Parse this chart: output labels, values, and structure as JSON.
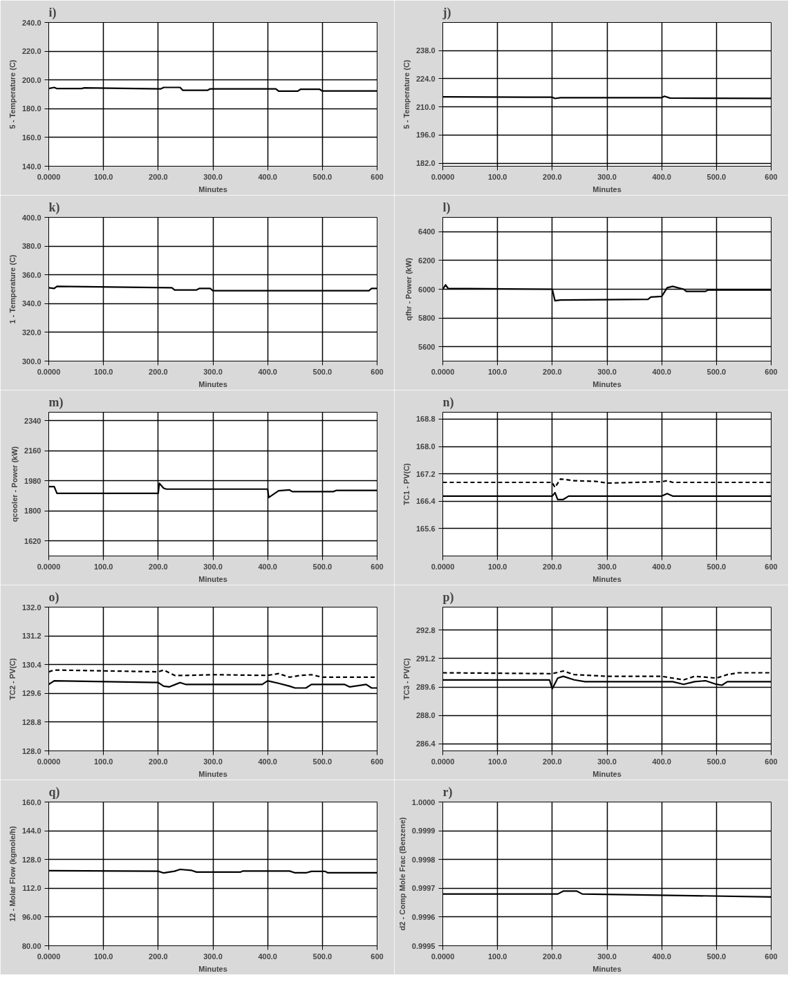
{
  "chart_data": [
    {
      "type": "line",
      "title": "i)",
      "xlabel": "Minutes",
      "ylabel": "5 - Temperature (C)",
      "xlim": [
        0,
        600
      ],
      "ylim": [
        140,
        240
      ],
      "xticks": [
        {
          "value": 0,
          "label": "0.0000"
        },
        {
          "value": 100,
          "label": "100.0"
        },
        {
          "value": 200,
          "label": "200.0"
        },
        {
          "value": 300,
          "label": "300.0"
        },
        {
          "value": 400,
          "label": "400.0"
        },
        {
          "value": 500,
          "label": "500.0"
        },
        {
          "value": 600,
          "label": "600"
        }
      ],
      "yticks": [
        {
          "value": 140,
          "label": "140.0"
        },
        {
          "value": 160,
          "label": "160.0"
        },
        {
          "value": 180,
          "label": "180.0"
        },
        {
          "value": 200,
          "label": "200.0"
        },
        {
          "value": 220,
          "label": "220.0"
        },
        {
          "value": 240,
          "label": "240.0"
        }
      ],
      "grid": true,
      "series": [
        {
          "color": "#000000",
          "line_style": "solid",
          "x": [
            0,
            10,
            15,
            60,
            65,
            205,
            210,
            240,
            245,
            290,
            295,
            415,
            420,
            455,
            460,
            495,
            500,
            600
          ],
          "values": [
            194,
            194.8,
            194,
            194,
            194.5,
            193.8,
            194.8,
            194.8,
            192.8,
            192.8,
            193.8,
            193.8,
            192.2,
            192.2,
            193.5,
            193.5,
            192.3,
            192.3
          ]
        }
      ]
    },
    {
      "type": "line",
      "title": "j)",
      "xlabel": "Minutes",
      "ylabel": "5 - Temperature (C)",
      "xlim": [
        0,
        600
      ],
      "ylim": [
        180.5,
        252
      ],
      "xticks": [
        {
          "value": 0,
          "label": "0.0000"
        },
        {
          "value": 100,
          "label": "100.0"
        },
        {
          "value": 200,
          "label": "200.0"
        },
        {
          "value": 300,
          "label": "300.0"
        },
        {
          "value": 400,
          "label": "400.0"
        },
        {
          "value": 500,
          "label": "500.0"
        },
        {
          "value": 600,
          "label": "600"
        }
      ],
      "yticks": [
        {
          "value": 182,
          "label": "182.0"
        },
        {
          "value": 196,
          "label": "196.0"
        },
        {
          "value": 210,
          "label": "210.0"
        },
        {
          "value": 224,
          "label": "224.0"
        },
        {
          "value": 238,
          "label": "238.0"
        }
      ],
      "grid": true,
      "series": [
        {
          "color": "#000000",
          "line_style": "solid",
          "x": [
            0,
            200,
            205,
            215,
            400,
            405,
            415,
            600
          ],
          "values": [
            215,
            214.8,
            214.2,
            214.6,
            214.6,
            215.3,
            214.4,
            214.2
          ]
        }
      ]
    },
    {
      "type": "line",
      "title": "k)",
      "xlabel": "Minutes",
      "ylabel": "1 - Temperature (C)",
      "xlim": [
        0,
        600
      ],
      "ylim": [
        300,
        400
      ],
      "xticks": [
        {
          "value": 0,
          "label": "0.0000"
        },
        {
          "value": 100,
          "label": "100.0"
        },
        {
          "value": 200,
          "label": "200.0"
        },
        {
          "value": 300,
          "label": "300.0"
        },
        {
          "value": 400,
          "label": "400.0"
        },
        {
          "value": 500,
          "label": "500.0"
        },
        {
          "value": 600,
          "label": "600"
        }
      ],
      "yticks": [
        {
          "value": 300,
          "label": "300.0"
        },
        {
          "value": 320,
          "label": "320.0"
        },
        {
          "value": 340,
          "label": "340.0"
        },
        {
          "value": 360,
          "label": "360.0"
        },
        {
          "value": 380,
          "label": "380.0"
        },
        {
          "value": 400,
          "label": "400.0"
        }
      ],
      "grid": true,
      "series": [
        {
          "color": "#000000",
          "line_style": "solid",
          "x": [
            0,
            10,
            15,
            225,
            230,
            270,
            275,
            295,
            300,
            585,
            590,
            600
          ],
          "values": [
            351,
            350.5,
            352,
            351,
            349.5,
            349.5,
            350.5,
            350.5,
            349,
            349,
            350.5,
            350.5
          ]
        }
      ]
    },
    {
      "type": "line",
      "title": "l)",
      "xlabel": "Minutes",
      "ylabel": "qfhr - Power (kW)",
      "xlim": [
        0,
        600
      ],
      "ylim": [
        5500,
        6500
      ],
      "xticks": [
        {
          "value": 0,
          "label": "0.0000"
        },
        {
          "value": 100,
          "label": "100.0"
        },
        {
          "value": 200,
          "label": "200.0"
        },
        {
          "value": 300,
          "label": "300.0"
        },
        {
          "value": 400,
          "label": "400.0"
        },
        {
          "value": 500,
          "label": "500.0"
        },
        {
          "value": 600,
          "label": "600"
        }
      ],
      "yticks": [
        5600,
        5800,
        6000,
        6200,
        6400
      ],
      "grid": true,
      "series": [
        {
          "color": "#000000",
          "line_style": "solid",
          "x": [
            0,
            5,
            10,
            200,
            205,
            215,
            375,
            380,
            400,
            410,
            420,
            440,
            445,
            480,
            485,
            600
          ],
          "values": [
            6000,
            6030,
            6005,
            6000,
            5920,
            5925,
            5930,
            5945,
            5950,
            6010,
            6020,
            6000,
            5985,
            5985,
            5995,
            5995
          ]
        }
      ]
    },
    {
      "type": "line",
      "title": "m)",
      "xlabel": "Minutes",
      "ylabel": "qcooler - Power (kW)",
      "xlim": [
        0,
        600
      ],
      "ylim": [
        1530,
        2390
      ],
      "xticks": [
        {
          "value": 0,
          "label": "0.0000"
        },
        {
          "value": 100,
          "label": "100.0"
        },
        {
          "value": 200,
          "label": "200.0"
        },
        {
          "value": 300,
          "label": "300.0"
        },
        {
          "value": 400,
          "label": "400.0"
        },
        {
          "value": 500,
          "label": "500.0"
        },
        {
          "value": 600,
          "label": "600"
        }
      ],
      "yticks": [
        1620,
        1800,
        1980,
        2160,
        2340
      ],
      "grid": true,
      "series": [
        {
          "color": "#000000",
          "line_style": "solid",
          "x": [
            0,
            10,
            15,
            200,
            202,
            210,
            215,
            400,
            402,
            420,
            440,
            445,
            520,
            525,
            600
          ],
          "values": [
            1945,
            1945,
            1905,
            1905,
            1965,
            1935,
            1930,
            1930,
            1880,
            1920,
            1925,
            1915,
            1915,
            1922,
            1922
          ]
        }
      ]
    },
    {
      "type": "line",
      "title": "n)",
      "xlabel": "Minutes",
      "ylabel": "TC1 - PV(C)",
      "xlim": [
        0,
        600
      ],
      "ylim": [
        164.8,
        169.0
      ],
      "xticks": [
        {
          "value": 0,
          "label": "0.0000"
        },
        {
          "value": 100,
          "label": "100.0"
        },
        {
          "value": 200,
          "label": "200.0"
        },
        {
          "value": 300,
          "label": "300.0"
        },
        {
          "value": 400,
          "label": "400.0"
        },
        {
          "value": 500,
          "label": "500.0"
        },
        {
          "value": 600,
          "label": "600"
        }
      ],
      "yticks": [
        {
          "value": 165.6,
          "label": "165.6"
        },
        {
          "value": 166.4,
          "label": "166.4"
        },
        {
          "value": 167.2,
          "label": "167.2"
        },
        {
          "value": 168.0,
          "label": "168.0"
        },
        {
          "value": 168.8,
          "label": "168.8"
        }
      ],
      "grid": true,
      "series": [
        {
          "color": "#000000",
          "line_style": "solid",
          "x": [
            0,
            200,
            205,
            210,
            220,
            230,
            240,
            400,
            410,
            420,
            600
          ],
          "values": [
            166.55,
            166.55,
            166.65,
            166.45,
            166.45,
            166.55,
            166.55,
            166.55,
            166.62,
            166.55,
            166.55
          ]
        },
        {
          "color": "#000000",
          "line_style": "dashed",
          "x": [
            0,
            200,
            205,
            215,
            240,
            280,
            300,
            400,
            410,
            420,
            600
          ],
          "values": [
            166.95,
            166.95,
            166.8,
            167.05,
            167.0,
            166.98,
            166.93,
            166.97,
            167.0,
            166.95,
            166.95
          ]
        }
      ]
    },
    {
      "type": "line",
      "title": "o)",
      "xlabel": "Minutes",
      "ylabel": "TC2 - PV(C)",
      "xlim": [
        0,
        600
      ],
      "ylim": [
        128,
        132
      ],
      "xticks": [
        {
          "value": 0,
          "label": "0.0000"
        },
        {
          "value": 100,
          "label": "100.0"
        },
        {
          "value": 200,
          "label": "200.0"
        },
        {
          "value": 300,
          "label": "300.0"
        },
        {
          "value": 400,
          "label": "400.0"
        },
        {
          "value": 500,
          "label": "500.0"
        },
        {
          "value": 600,
          "label": "600"
        }
      ],
      "yticks": [
        {
          "value": 128.0,
          "label": "128.0"
        },
        {
          "value": 128.8,
          "label": "128.8"
        },
        {
          "value": 129.6,
          "label": "129.6"
        },
        {
          "value": 130.4,
          "label": "130.4"
        },
        {
          "value": 131.2,
          "label": "131.2"
        },
        {
          "value": 132.0,
          "label": "132.0"
        }
      ],
      "grid": true,
      "series": [
        {
          "color": "#000000",
          "line_style": "solid",
          "x": [
            0,
            10,
            200,
            210,
            220,
            240,
            250,
            390,
            400,
            420,
            440,
            450,
            470,
            480,
            540,
            550,
            580,
            590,
            600
          ],
          "values": [
            129.85,
            129.95,
            129.9,
            129.8,
            129.78,
            129.9,
            129.85,
            129.85,
            129.95,
            129.88,
            129.8,
            129.75,
            129.75,
            129.85,
            129.85,
            129.78,
            129.85,
            129.75,
            129.75
          ]
        },
        {
          "color": "#000000",
          "line_style": "dashed",
          "x": [
            0,
            10,
            200,
            210,
            230,
            250,
            300,
            400,
            420,
            440,
            460,
            480,
            500,
            600
          ],
          "values": [
            130.2,
            130.25,
            130.2,
            130.25,
            130.1,
            130.1,
            130.12,
            130.1,
            130.15,
            130.05,
            130.1,
            130.12,
            130.05,
            130.05
          ]
        }
      ]
    },
    {
      "type": "line",
      "title": "p)",
      "xlabel": "Minutes",
      "ylabel": "TC3 - PV(C)",
      "xlim": [
        0,
        600
      ],
      "ylim": [
        286.0,
        294.1
      ],
      "xticks": [
        {
          "value": 0,
          "label": "0.0000"
        },
        {
          "value": 100,
          "label": "100.0"
        },
        {
          "value": 200,
          "label": "200.0"
        },
        {
          "value": 300,
          "label": "300.0"
        },
        {
          "value": 400,
          "label": "400.0"
        },
        {
          "value": 500,
          "label": "500.0"
        },
        {
          "value": 600,
          "label": "600"
        }
      ],
      "yticks": [
        {
          "value": 286.4,
          "label": "286.4"
        },
        {
          "value": 288.0,
          "label": "288.0"
        },
        {
          "value": 289.6,
          "label": "289.6"
        },
        {
          "value": 291.2,
          "label": "291.2"
        },
        {
          "value": 292.8,
          "label": "292.8"
        }
      ],
      "grid": true,
      "series": [
        {
          "color": "#000000",
          "line_style": "solid",
          "x": [
            0,
            195,
            200,
            210,
            220,
            240,
            260,
            420,
            440,
            460,
            480,
            500,
            510,
            520,
            600
          ],
          "values": [
            290.0,
            290.0,
            289.5,
            290.1,
            290.2,
            290.0,
            289.9,
            289.9,
            289.75,
            289.9,
            289.95,
            289.75,
            289.7,
            289.9,
            289.9
          ]
        },
        {
          "color": "#000000",
          "line_style": "dashed",
          "x": [
            0,
            200,
            220,
            240,
            300,
            400,
            440,
            460,
            500,
            520,
            540,
            600
          ],
          "values": [
            290.4,
            290.35,
            290.5,
            290.3,
            290.2,
            290.2,
            290.0,
            290.2,
            290.1,
            290.3,
            290.4,
            290.4
          ]
        }
      ]
    },
    {
      "type": "line",
      "title": "q)",
      "xlabel": "Minutes",
      "ylabel": "12 - Molar Flow (kgmole/h)",
      "xlim": [
        0,
        600
      ],
      "ylim": [
        80,
        160
      ],
      "xticks": [
        {
          "value": 0,
          "label": "0.0000"
        },
        {
          "value": 100,
          "label": "100.0"
        },
        {
          "value": 200,
          "label": "200.0"
        },
        {
          "value": 300,
          "label": "300.0"
        },
        {
          "value": 400,
          "label": "400.0"
        },
        {
          "value": 500,
          "label": "500.0"
        },
        {
          "value": 600,
          "label": "600"
        }
      ],
      "yticks": [
        {
          "value": 80,
          "label": "80.00"
        },
        {
          "value": 96,
          "label": "96.00"
        },
        {
          "value": 112,
          "label": "112.0"
        },
        {
          "value": 128,
          "label": "128.0"
        },
        {
          "value": 144,
          "label": "144.0"
        },
        {
          "value": 160,
          "label": "160.0"
        }
      ],
      "grid": true,
      "series": [
        {
          "color": "#000000",
          "line_style": "solid",
          "x": [
            0,
            200,
            210,
            230,
            240,
            260,
            270,
            350,
            355,
            440,
            450,
            470,
            480,
            505,
            510,
            600
          ],
          "values": [
            121.8,
            121.5,
            120.5,
            121.5,
            122.5,
            122,
            121,
            121,
            121.6,
            121.6,
            120.6,
            120.6,
            121.4,
            121.4,
            120.6,
            120.6
          ]
        }
      ]
    },
    {
      "type": "line",
      "title": "r)",
      "xlabel": "Minutes",
      "ylabel": "d2 - Comp Mole Frac (Benzene)",
      "xlim": [
        0,
        600
      ],
      "ylim": [
        0.9995,
        1.0
      ],
      "xticks": [
        {
          "value": 0,
          "label": "0.0000"
        },
        {
          "value": 100,
          "label": "100.0"
        },
        {
          "value": 200,
          "label": "200.0"
        },
        {
          "value": 300,
          "label": "300.0"
        },
        {
          "value": 400,
          "label": "400.0"
        },
        {
          "value": 500,
          "label": "500.0"
        },
        {
          "value": 600,
          "label": "600"
        }
      ],
      "yticks": [
        {
          "value": 0.9995,
          "label": "0.9995"
        },
        {
          "value": 0.9996,
          "label": "0.9996"
        },
        {
          "value": 0.9997,
          "label": "0.9997"
        },
        {
          "value": 0.9998,
          "label": "0.9998"
        },
        {
          "value": 0.9999,
          "label": "0.9999"
        },
        {
          "value": 1.0,
          "label": "1.0000"
        }
      ],
      "grid": true,
      "series": [
        {
          "color": "#000000",
          "line_style": "solid",
          "x": [
            0,
            210,
            220,
            245,
            255,
            600
          ],
          "values": [
            0.99968,
            0.99968,
            0.99969,
            0.99969,
            0.99968,
            0.99967
          ]
        }
      ]
    }
  ]
}
